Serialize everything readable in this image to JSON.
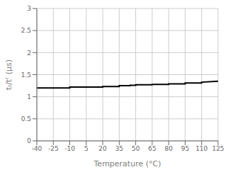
{
  "chart_data": {
    "type": "line",
    "xlabel": "Temperature (°C)",
    "ylabel": "tᵣ/tᶠ (μs)",
    "x": [
      -40,
      -10,
      -10,
      20,
      20,
      35,
      35,
      45,
      45,
      50,
      50,
      65,
      65,
      80,
      80,
      95,
      95,
      110,
      110,
      125
    ],
    "values": [
      1.2,
      1.2,
      1.22,
      1.22,
      1.23,
      1.23,
      1.25,
      1.25,
      1.26,
      1.26,
      1.27,
      1.27,
      1.28,
      1.28,
      1.29,
      1.29,
      1.31,
      1.31,
      1.33,
      1.35
    ],
    "color": "#000000",
    "xlim": [
      -40,
      125
    ],
    "ylim": [
      0,
      3
    ],
    "xticks": [
      -40,
      -25,
      -10,
      5,
      20,
      35,
      50,
      65,
      80,
      95,
      110,
      125
    ],
    "yticks": [
      0,
      0.5,
      1,
      1.5,
      2,
      2.5,
      3
    ],
    "grid": true
  }
}
